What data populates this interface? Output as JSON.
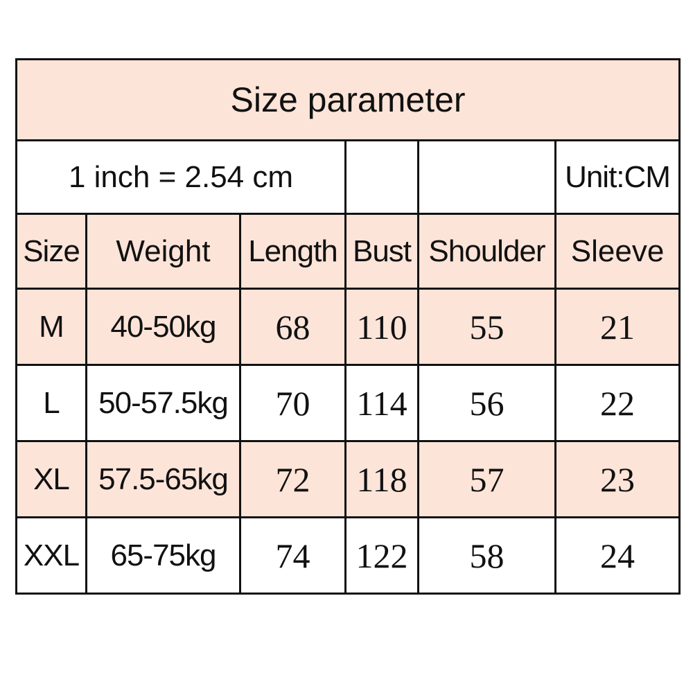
{
  "title": "Size parameter",
  "conversion": "1 inch = 2.54 cm",
  "unit": "Unit:CM",
  "colors": {
    "row_fill": "#fde4d8",
    "border": "#111111"
  },
  "columns": [
    "Size",
    "Weight",
    "Length",
    "Bust",
    "Shoulder",
    "Sleeve"
  ],
  "rows": [
    {
      "size": "M",
      "weight": "40-50kg",
      "length": "68",
      "bust": "110",
      "shoulder": "55",
      "sleeve": "21",
      "shaded": true
    },
    {
      "size": "L",
      "weight": "50-57.5kg",
      "length": "70",
      "bust": "114",
      "shoulder": "56",
      "sleeve": "22",
      "shaded": false
    },
    {
      "size": "XL",
      "weight": "57.5-65kg",
      "length": "72",
      "bust": "118",
      "shoulder": "57",
      "sleeve": "23",
      "shaded": true
    },
    {
      "size": "XXL",
      "weight": "65-75kg",
      "length": "74",
      "bust": "122",
      "shoulder": "58",
      "sleeve": "24",
      "shaded": false
    }
  ]
}
